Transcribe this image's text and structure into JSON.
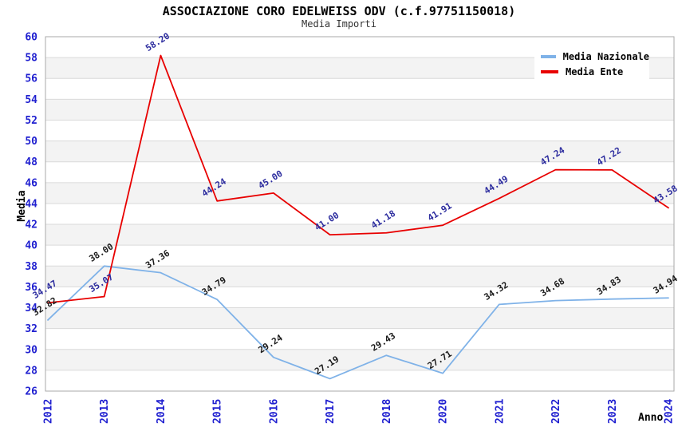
{
  "chart_data": {
    "type": "line",
    "title": "ASSOCIAZIONE CORO EDELWEISS ODV (c.f.97751150018)",
    "subtitle": "Media Importi",
    "xlabel": "Anno",
    "ylabel": "Media",
    "ylim": [
      26,
      60
    ],
    "ytick_step": 2,
    "grid": true,
    "legend_position": "top-right",
    "categories": [
      "2012",
      "2013",
      "2014",
      "2015",
      "2016",
      "2017",
      "2018",
      "2020",
      "2021",
      "2022",
      "2023",
      "2024"
    ],
    "series": [
      {
        "name": "Media Nazionale",
        "color": "#7fb2e8",
        "label_color": "#1a1a1a",
        "values": [
          32.82,
          38.0,
          37.36,
          34.79,
          29.24,
          27.19,
          29.43,
          27.71,
          34.32,
          34.68,
          34.83,
          34.94
        ]
      },
      {
        "name": "Media Ente",
        "color": "#e80000",
        "label_color": "#2b2b9e",
        "values": [
          34.47,
          35.07,
          58.2,
          44.24,
          45.0,
          41.0,
          41.18,
          41.91,
          44.49,
          47.24,
          47.22,
          43.58
        ]
      }
    ],
    "colors": {
      "band": "#f3f3f3",
      "grid": "#dadada",
      "frame": "#a9a9a9",
      "tick_labels": "#2020d0",
      "background": "#ffffff"
    }
  }
}
